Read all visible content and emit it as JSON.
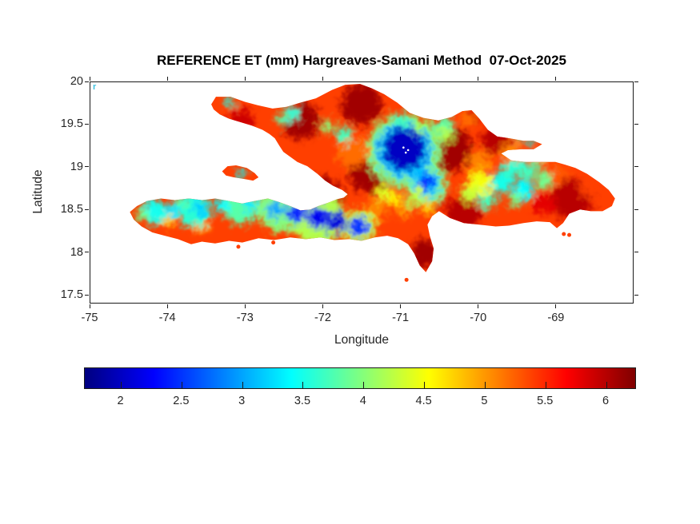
{
  "figure": {
    "title": "REFERENCE ET (mm) Hargreaves-Samani Method  07-Oct-2025",
    "background": "#ffffff",
    "stray_annotation": {
      "text": "r",
      "color": "#3ec1e0"
    }
  },
  "axes": {
    "xlabel": "Longitude",
    "ylabel": "Latitude",
    "xlim": [
      -75,
      -68
    ],
    "ylim": [
      17.4,
      20
    ],
    "xticks": [
      -75,
      -74,
      -73,
      -72,
      -71,
      -70,
      -69
    ],
    "yticks": [
      17.5,
      18,
      18.5,
      19,
      19.5,
      20
    ],
    "tick_label_color": "#262626",
    "box_color": "#1a1a1a"
  },
  "colorbar": {
    "orientation": "horizontal",
    "colormap": "jet",
    "limits": [
      1.7,
      6.25
    ],
    "ticks": [
      2,
      2.5,
      3,
      3.5,
      4,
      4.5,
      5,
      5.5,
      6
    ]
  },
  "chart_data": {
    "type": "heatmap",
    "variable": "Reference ET (mm)",
    "method": "Hargreaves-Samani",
    "date": "07-Oct-2025",
    "region": "Hispaniola (Haiti and Dominican Republic)",
    "value_range_mm": [
      1.7,
      6.25
    ],
    "base_value_mm": 5.4,
    "coastline": {
      "main": [
        [
          -73.44,
          19.74
        ],
        [
          -73.38,
          19.83
        ],
        [
          -73.19,
          19.83
        ],
        [
          -73.01,
          19.77
        ],
        [
          -72.84,
          19.73
        ],
        [
          -72.65,
          19.69
        ],
        [
          -72.47,
          19.71
        ],
        [
          -72.29,
          19.76
        ],
        [
          -72.09,
          19.81
        ],
        [
          -71.88,
          19.91
        ],
        [
          -71.71,
          19.97
        ],
        [
          -71.52,
          19.98
        ],
        [
          -71.37,
          19.93
        ],
        [
          -71.21,
          19.86
        ],
        [
          -71.04,
          19.76
        ],
        [
          -70.88,
          19.64
        ],
        [
          -70.7,
          19.58
        ],
        [
          -70.51,
          19.55
        ],
        [
          -70.34,
          19.59
        ],
        [
          -70.2,
          19.66
        ],
        [
          -70.08,
          19.67
        ],
        [
          -69.98,
          19.57
        ],
        [
          -69.87,
          19.44
        ],
        [
          -69.75,
          19.36
        ],
        [
          -69.59,
          19.34
        ],
        [
          -69.41,
          19.31
        ],
        [
          -69.28,
          19.31
        ],
        [
          -69.17,
          19.27
        ],
        [
          -69.28,
          19.21
        ],
        [
          -69.44,
          19.21
        ],
        [
          -69.61,
          19.2
        ],
        [
          -69.7,
          19.16
        ],
        [
          -69.57,
          19.08
        ],
        [
          -69.38,
          19.06
        ],
        [
          -69.19,
          19.06
        ],
        [
          -69.0,
          19.06
        ],
        [
          -68.88,
          19.03
        ],
        [
          -68.74,
          18.99
        ],
        [
          -68.59,
          18.92
        ],
        [
          -68.43,
          18.82
        ],
        [
          -68.31,
          18.73
        ],
        [
          -68.23,
          18.63
        ],
        [
          -68.27,
          18.54
        ],
        [
          -68.39,
          18.48
        ],
        [
          -68.54,
          18.48
        ],
        [
          -68.68,
          18.5
        ],
        [
          -68.82,
          18.45
        ],
        [
          -68.9,
          18.34
        ],
        [
          -68.98,
          18.28
        ],
        [
          -69.07,
          18.35
        ],
        [
          -69.24,
          18.36
        ],
        [
          -69.41,
          18.34
        ],
        [
          -69.59,
          18.31
        ],
        [
          -69.77,
          18.3
        ],
        [
          -69.98,
          18.32
        ],
        [
          -70.18,
          18.34
        ],
        [
          -70.36,
          18.4
        ],
        [
          -70.5,
          18.48
        ],
        [
          -70.59,
          18.42
        ],
        [
          -70.65,
          18.32
        ],
        [
          -70.62,
          18.19
        ],
        [
          -70.57,
          18.04
        ],
        [
          -70.59,
          17.89
        ],
        [
          -70.67,
          17.76
        ],
        [
          -70.75,
          17.84
        ],
        [
          -70.82,
          17.98
        ],
        [
          -70.9,
          18.09
        ],
        [
          -71.03,
          18.16
        ],
        [
          -71.17,
          18.19
        ],
        [
          -71.33,
          18.17
        ],
        [
          -71.5,
          18.13
        ],
        [
          -71.66,
          18.15
        ],
        [
          -71.85,
          18.14
        ],
        [
          -72.03,
          18.17
        ],
        [
          -72.22,
          18.15
        ],
        [
          -72.42,
          18.17
        ],
        [
          -72.63,
          18.14
        ],
        [
          -72.83,
          18.16
        ],
        [
          -73.04,
          18.11
        ],
        [
          -73.21,
          18.13
        ],
        [
          -73.39,
          18.1
        ],
        [
          -73.56,
          18.12
        ],
        [
          -73.7,
          18.09
        ],
        [
          -73.87,
          18.15
        ],
        [
          -74.04,
          18.19
        ],
        [
          -74.2,
          18.23
        ],
        [
          -74.34,
          18.3
        ],
        [
          -74.44,
          18.38
        ],
        [
          -74.49,
          18.47
        ],
        [
          -74.4,
          18.54
        ],
        [
          -74.27,
          18.6
        ],
        [
          -74.09,
          18.63
        ],
        [
          -73.91,
          18.61
        ],
        [
          -73.73,
          18.63
        ],
        [
          -73.56,
          18.61
        ],
        [
          -73.39,
          18.63
        ],
        [
          -73.21,
          18.6
        ],
        [
          -73.04,
          18.57
        ],
        [
          -72.88,
          18.6
        ],
        [
          -72.71,
          18.63
        ],
        [
          -72.57,
          18.59
        ],
        [
          -72.42,
          18.54
        ],
        [
          -72.29,
          18.49
        ],
        [
          -72.16,
          18.5
        ],
        [
          -72.06,
          18.54
        ],
        [
          -71.93,
          18.58
        ],
        [
          -71.82,
          18.62
        ],
        [
          -71.73,
          18.64
        ],
        [
          -71.68,
          18.68
        ],
        [
          -71.75,
          18.73
        ],
        [
          -71.87,
          18.78
        ],
        [
          -71.97,
          18.84
        ],
        [
          -72.07,
          18.92
        ],
        [
          -72.2,
          19.01
        ],
        [
          -72.33,
          19.06
        ],
        [
          -72.42,
          19.12
        ],
        [
          -72.51,
          19.18
        ],
        [
          -72.56,
          19.25
        ],
        [
          -72.62,
          19.34
        ],
        [
          -72.69,
          19.39
        ],
        [
          -72.78,
          19.44
        ],
        [
          -72.92,
          19.49
        ],
        [
          -73.06,
          19.53
        ],
        [
          -73.21,
          19.57
        ],
        [
          -73.33,
          19.62
        ],
        [
          -73.41,
          19.68
        ]
      ],
      "gonave": [
        [
          -73.3,
          18.95
        ],
        [
          -73.23,
          19.01
        ],
        [
          -73.12,
          19.02
        ],
        [
          -72.98,
          18.99
        ],
        [
          -72.88,
          18.93
        ],
        [
          -72.83,
          18.88
        ],
        [
          -72.9,
          18.84
        ],
        [
          -73.02,
          18.86
        ],
        [
          -73.15,
          18.88
        ],
        [
          -73.25,
          18.9
        ]
      ],
      "islets": [
        [
          -73.58,
          18.41
        ],
        [
          -73.09,
          18.06
        ],
        [
          -72.64,
          18.11
        ],
        [
          -70.92,
          17.67
        ],
        [
          -68.89,
          18.21
        ],
        [
          -68.82,
          18.2
        ]
      ]
    },
    "field": [
      [
        -72.29,
        19.55,
        6.1,
        24
      ],
      [
        -71.5,
        19.74,
        6.1,
        26
      ],
      [
        -70.39,
        19.22,
        6.1,
        30
      ],
      [
        -71.4,
        18.94,
        6.1,
        26
      ],
      [
        -72.03,
        18.62,
        6.1,
        28
      ],
      [
        -70.18,
        18.45,
        6.0,
        22
      ],
      [
        -68.79,
        18.62,
        6.0,
        26
      ],
      [
        -70.68,
        17.98,
        6.1,
        18
      ],
      [
        -73.06,
        19.55,
        5.9,
        16
      ],
      [
        -69.77,
        19.32,
        6.0,
        18
      ],
      [
        -70.54,
        18.66,
        5.9,
        16
      ],
      [
        -69.15,
        18.57,
        5.8,
        14
      ],
      [
        -70.08,
        19.6,
        5.9,
        12
      ],
      [
        -71.62,
        19.18,
        5.2,
        20
      ],
      [
        -71.31,
        18.5,
        5.1,
        14
      ],
      [
        -69.98,
        19.04,
        5.1,
        16
      ],
      [
        -69.57,
        19.16,
        5.1,
        13
      ],
      [
        -68.95,
        18.92,
        5.3,
        13
      ],
      [
        -68.58,
        18.75,
        5.4,
        11
      ],
      [
        -70.13,
        19.57,
        5.2,
        10
      ],
      [
        -73.58,
        18.33,
        5.0,
        12
      ],
      [
        -73.99,
        18.37,
        4.8,
        9
      ],
      [
        -69.19,
        19.12,
        5.1,
        10
      ],
      [
        -70.95,
        19.2,
        4.0,
        46
      ],
      [
        -72.08,
        18.41,
        4.2,
        34
      ],
      [
        -72.55,
        18.5,
        4.0,
        28
      ],
      [
        -73.06,
        18.55,
        3.8,
        24
      ],
      [
        -73.66,
        18.5,
        3.6,
        22
      ],
      [
        -74.18,
        18.47,
        3.5,
        16
      ],
      [
        -70.67,
        18.8,
        4.0,
        26
      ],
      [
        -71.54,
        18.29,
        4.3,
        22
      ],
      [
        -69.98,
        18.8,
        4.5,
        16
      ],
      [
        -70.95,
        19.2,
        3.1,
        36
      ],
      [
        -70.67,
        18.8,
        3.2,
        18
      ],
      [
        -70.95,
        19.21,
        2.0,
        27
      ],
      [
        -70.66,
        18.82,
        2.5,
        11
      ],
      [
        -71.54,
        18.29,
        2.5,
        13
      ],
      [
        -71.83,
        18.35,
        2.1,
        13
      ],
      [
        -72.07,
        18.41,
        2.2,
        14
      ],
      [
        -72.34,
        18.46,
        2.4,
        12
      ],
      [
        -72.6,
        18.49,
        3.0,
        11
      ],
      [
        -72.94,
        18.55,
        3.3,
        9
      ],
      [
        -73.29,
        18.55,
        3.4,
        9
      ],
      [
        -73.58,
        18.51,
        3.2,
        10
      ],
      [
        -73.93,
        18.49,
        3.3,
        9
      ],
      [
        -74.24,
        18.47,
        3.4,
        8
      ],
      [
        -70.44,
        19.48,
        3.8,
        12
      ],
      [
        -70.41,
        19.38,
        4.2,
        9
      ],
      [
        -72.39,
        19.63,
        3.6,
        9
      ],
      [
        -71.72,
        19.38,
        3.7,
        10
      ],
      [
        -73.2,
        19.77,
        3.5,
        6
      ],
      [
        -70.99,
        19.55,
        3.7,
        9
      ],
      [
        -70.75,
        19.48,
        4.1,
        8
      ],
      [
        -69.69,
        18.82,
        3.5,
        14
      ],
      [
        -69.41,
        18.73,
        3.4,
        13
      ],
      [
        -69.15,
        18.85,
        3.9,
        11
      ],
      [
        -69.87,
        18.6,
        3.7,
        11
      ],
      [
        -69.57,
        18.97,
        3.6,
        11
      ],
      [
        -70.1,
        18.69,
        4.3,
        11
      ],
      [
        -69.36,
        18.94,
        3.7,
        10
      ],
      [
        -69.52,
        18.62,
        3.9,
        9
      ],
      [
        -69.41,
        19.04,
        3.6,
        7
      ],
      [
        -69.23,
        19.02,
        3.8,
        6
      ],
      [
        -69.31,
        19.3,
        3.4,
        5
      ],
      [
        -69.47,
        19.33,
        3.9,
        5
      ],
      [
        -71.06,
        18.62,
        4.6,
        9
      ],
      [
        -70.85,
        18.59,
        4.2,
        8
      ],
      [
        -70.65,
        18.53,
        4.8,
        9
      ],
      [
        -70.95,
        18.47,
        5.0,
        8
      ],
      [
        -71.21,
        18.69,
        4.4,
        10
      ],
      [
        -70.78,
        18.69,
        4.3,
        8
      ],
      [
        -73.06,
        18.93,
        3.4,
        6
      ],
      [
        -74.32,
        18.43,
        3.9,
        9
      ],
      [
        -73.84,
        18.58,
        3.8,
        7
      ],
      [
        -72.53,
        19.57,
        3.8,
        7
      ],
      [
        -71.93,
        19.48,
        4.0,
        8
      ]
    ],
    "no_data_specks": [
      [
        -70.96,
        19.23
      ],
      [
        -70.9,
        19.2
      ],
      [
        -70.93,
        19.17
      ]
    ]
  }
}
